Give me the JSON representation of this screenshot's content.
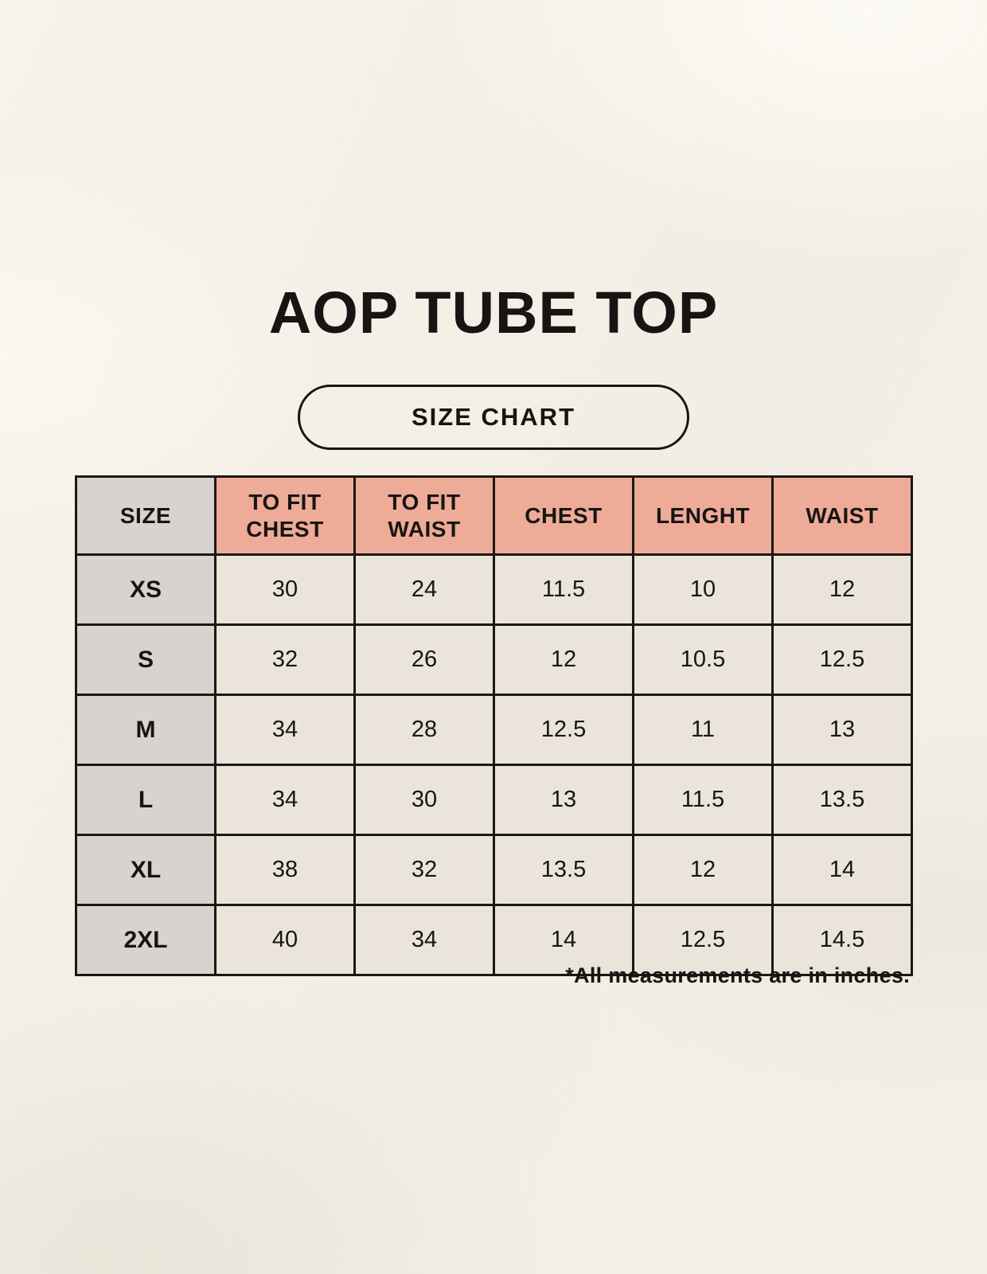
{
  "colors": {
    "background": "#f3efe6",
    "header_pink": "#eeab97",
    "size_gray": "#d8d3cf",
    "cell_beige": "#eae4da",
    "border": "#1a1815",
    "text": "#171513"
  },
  "header": {
    "title": "AOP TUBE TOP",
    "badge_label": "SIZE CHART"
  },
  "table": {
    "columns": [
      "SIZE",
      "TO FIT CHEST",
      "TO FIT WAIST",
      "CHEST",
      "LENGHT",
      "WAIST"
    ],
    "rows": [
      [
        "XS",
        "30",
        "24",
        "11.5",
        "10",
        "12"
      ],
      [
        "S",
        "32",
        "26",
        "12",
        "10.5",
        "12.5"
      ],
      [
        "M",
        "34",
        "28",
        "12.5",
        "11",
        "13"
      ],
      [
        "L",
        "34",
        "30",
        "13",
        "11.5",
        "13.5"
      ],
      [
        "XL",
        "38",
        "32",
        "13.5",
        "12",
        "14"
      ],
      [
        "2XL",
        "40",
        "34",
        "14",
        "12.5",
        "14.5"
      ]
    ]
  },
  "footnote": "*All measurements are in inches."
}
